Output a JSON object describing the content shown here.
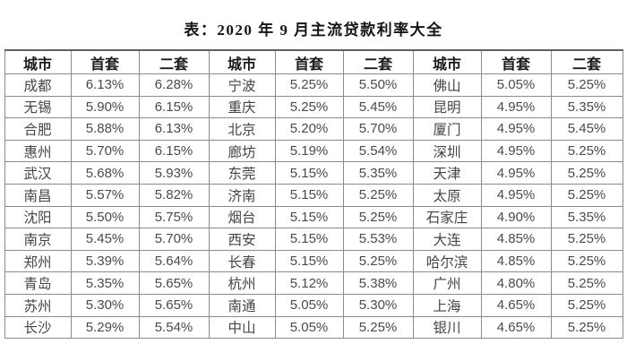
{
  "title": "表：2020 年 9 月主流贷款利率大全",
  "table": {
    "header": [
      "城市",
      "首套",
      "二套",
      "城市",
      "首套",
      "二套",
      "城市",
      "首套",
      "二套"
    ],
    "rows": [
      [
        "成都",
        "6.13%",
        "6.28%",
        "宁波",
        "5.25%",
        "5.50%",
        "佛山",
        "5.05%",
        "5.25%"
      ],
      [
        "无锡",
        "5.90%",
        "6.15%",
        "重庆",
        "5.25%",
        "5.45%",
        "昆明",
        "4.95%",
        "5.35%"
      ],
      [
        "合肥",
        "5.88%",
        "6.13%",
        "北京",
        "5.20%",
        "5.70%",
        "厦门",
        "4.95%",
        "5.45%"
      ],
      [
        "惠州",
        "5.70%",
        "6.15%",
        "廊坊",
        "5.19%",
        "5.54%",
        "深圳",
        "4.95%",
        "5.25%"
      ],
      [
        "武汉",
        "5.68%",
        "5.93%",
        "东莞",
        "5.15%",
        "5.35%",
        "天津",
        "4.95%",
        "5.25%"
      ],
      [
        "南昌",
        "5.57%",
        "5.82%",
        "济南",
        "5.15%",
        "5.25%",
        "太原",
        "4.95%",
        "5.25%"
      ],
      [
        "沈阳",
        "5.50%",
        "5.75%",
        "烟台",
        "5.15%",
        "5.25%",
        "石家庄",
        "4.90%",
        "5.35%"
      ],
      [
        "南京",
        "5.45%",
        "5.70%",
        "西安",
        "5.15%",
        "5.53%",
        "大连",
        "4.85%",
        "5.25%"
      ],
      [
        "郑州",
        "5.39%",
        "5.64%",
        "长春",
        "5.15%",
        "5.25%",
        "哈尔滨",
        "4.85%",
        "5.25%"
      ],
      [
        "青岛",
        "5.35%",
        "5.65%",
        "杭州",
        "5.12%",
        "5.38%",
        "广州",
        "4.80%",
        "5.25%"
      ],
      [
        "苏州",
        "5.30%",
        "5.65%",
        "南通",
        "5.05%",
        "5.30%",
        "上海",
        "4.65%",
        "5.25%"
      ],
      [
        "长沙",
        "5.29%",
        "5.54%",
        "中山",
        "5.05%",
        "5.25%",
        "银川",
        "4.65%",
        "5.25%"
      ]
    ]
  },
  "colors": {
    "background": "#ffffff",
    "border": "#8b8b8b",
    "outer_border": "#5f5f5f",
    "header_text": "#1b1b1b",
    "cell_text": "#4a4a4a",
    "title_text": "#151515"
  }
}
